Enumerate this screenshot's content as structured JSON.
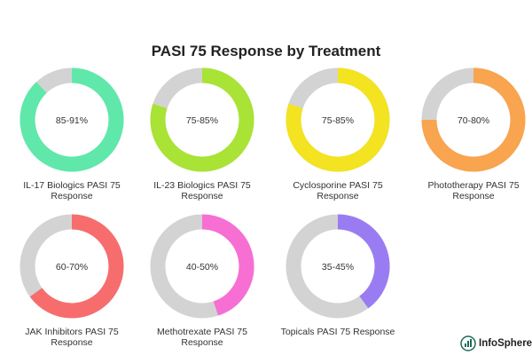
{
  "chart_data": {
    "type": "donut",
    "title": "PASI 75 Response by Treatment",
    "items": [
      {
        "label": "IL-17 Biologics PASI 75 Response",
        "range_text": "85-91%",
        "value_percent": 88,
        "color": "#5fe8aa"
      },
      {
        "label": "IL-23 Biologics PASI 75 Response",
        "range_text": "75-85%",
        "value_percent": 80,
        "color": "#a8e335"
      },
      {
        "label": "Cyclosporine PASI 75 Response",
        "range_text": "75-85%",
        "value_percent": 80,
        "color": "#f3e320"
      },
      {
        "label": "Phototherapy PASI 75 Response",
        "range_text": "70-80%",
        "value_percent": 75,
        "color": "#f9a44e"
      },
      {
        "label": "JAK Inhibitors PASI 75 Response",
        "range_text": "60-70%",
        "value_percent": 65,
        "color": "#f76d6d"
      },
      {
        "label": "Methotrexate PASI 75 Response",
        "range_text": "40-50%",
        "value_percent": 45,
        "color": "#f76fd3"
      },
      {
        "label": "Topicals PASI 75 Response",
        "range_text": "35-45%",
        "value_percent": 40,
        "color": "#9a7cf2"
      }
    ],
    "track_color": "#d3d3d3"
  },
  "branding": {
    "name": "InfoSphere",
    "icon": "infosphere-logo-icon"
  }
}
